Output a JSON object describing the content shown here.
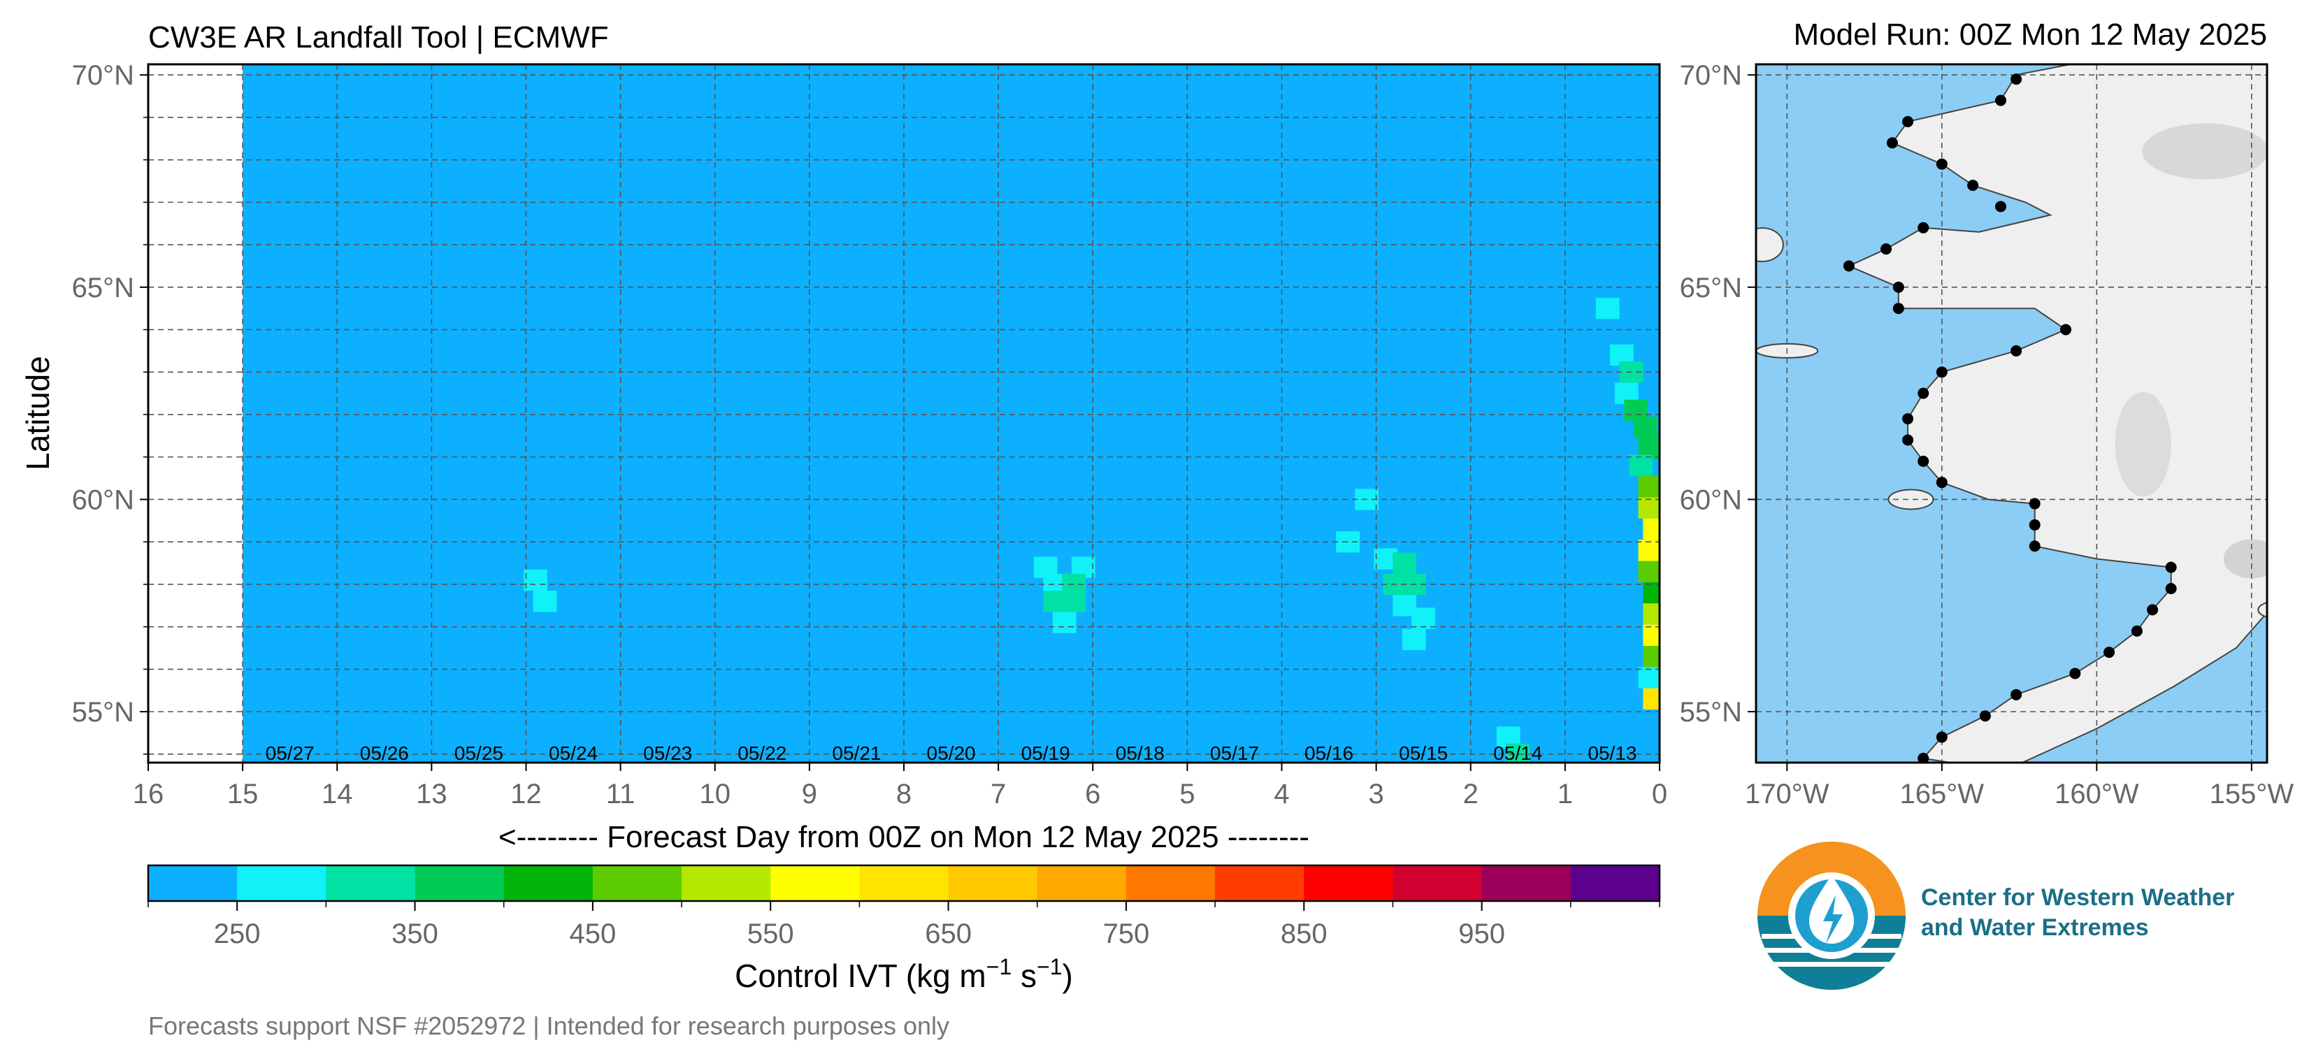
{
  "titles": {
    "left": "CW3E AR Landfall Tool | ECMWF",
    "right": "Model Run: 00Z Mon 12 May 2025"
  },
  "footer": "Forecasts support NSF #2052972 | Intended for research purposes only",
  "logo": {
    "line1": "Center for Western Weather",
    "line2": "and Water Extremes",
    "icon": "cw3e-drop-logo"
  },
  "colors": {
    "background": "#0cb0ff",
    "land": "#efefef",
    "ocean": "#8bcdf4",
    "missing": "#ffffff"
  },
  "chart_data": [
    {
      "type": "heatmap",
      "title": "CW3E AR Landfall Tool | ECMWF",
      "xlabel": "<-------- Forecast Day from 00Z on Mon 12 May 2025 --------",
      "ylabel": "Latitude",
      "x_ticks": [
        "16",
        "15",
        "14",
        "13",
        "12",
        "11",
        "10",
        "9",
        "8",
        "7",
        "6",
        "5",
        "4",
        "3",
        "2",
        "1",
        "0"
      ],
      "xlim": [
        16,
        0
      ],
      "y_ticks": [
        "55°N",
        "60°N",
        "65°N",
        "70°N"
      ],
      "ylim": [
        53.8,
        70.25
      ],
      "grid": true,
      "forecast_start_day": 15,
      "date_labels": [
        {
          "day": 14.5,
          "label": "05/27"
        },
        {
          "day": 13.5,
          "label": "05/26"
        },
        {
          "day": 12.5,
          "label": "05/25"
        },
        {
          "day": 11.5,
          "label": "05/24"
        },
        {
          "day": 10.5,
          "label": "05/23"
        },
        {
          "day": 9.5,
          "label": "05/22"
        },
        {
          "day": 8.5,
          "label": "05/21"
        },
        {
          "day": 7.5,
          "label": "05/20"
        },
        {
          "day": 6.5,
          "label": "05/19"
        },
        {
          "day": 5.5,
          "label": "05/18"
        },
        {
          "day": 4.5,
          "label": "05/17"
        },
        {
          "day": 3.5,
          "label": "05/16"
        },
        {
          "day": 2.5,
          "label": "05/15"
        },
        {
          "day": 1.5,
          "label": "05/14"
        },
        {
          "day": 0.5,
          "label": "05/13"
        }
      ],
      "ivt_cells": [
        {
          "day": 11.9,
          "lat": 58.1,
          "value": 270
        },
        {
          "day": 11.8,
          "lat": 57.6,
          "value": 270
        },
        {
          "day": 6.5,
          "lat": 58.4,
          "value": 270
        },
        {
          "day": 6.1,
          "lat": 58.4,
          "value": 270
        },
        {
          "day": 6.4,
          "lat": 58.0,
          "value": 270
        },
        {
          "day": 6.4,
          "lat": 57.6,
          "value": 320
        },
        {
          "day": 6.2,
          "lat": 58.0,
          "value": 330
        },
        {
          "day": 6.2,
          "lat": 57.6,
          "value": 320
        },
        {
          "day": 6.3,
          "lat": 57.1,
          "value": 270
        },
        {
          "day": 3.1,
          "lat": 60.0,
          "value": 270
        },
        {
          "day": 3.3,
          "lat": 59.0,
          "value": 270
        },
        {
          "day": 2.9,
          "lat": 58.6,
          "value": 270
        },
        {
          "day": 2.7,
          "lat": 58.5,
          "value": 310
        },
        {
          "day": 2.8,
          "lat": 58.0,
          "value": 320
        },
        {
          "day": 2.6,
          "lat": 58.0,
          "value": 320
        },
        {
          "day": 2.7,
          "lat": 57.5,
          "value": 290
        },
        {
          "day": 2.5,
          "lat": 57.2,
          "value": 270
        },
        {
          "day": 2.6,
          "lat": 56.7,
          "value": 270
        },
        {
          "day": 1.6,
          "lat": 54.4,
          "value": 270
        },
        {
          "day": 1.5,
          "lat": 54.0,
          "value": 330
        },
        {
          "day": 0.55,
          "lat": 64.5,
          "value": 270
        },
        {
          "day": 0.4,
          "lat": 63.4,
          "value": 270
        },
        {
          "day": 0.3,
          "lat": 63.0,
          "value": 330
        },
        {
          "day": 0.35,
          "lat": 62.5,
          "value": 270
        },
        {
          "day": 0.25,
          "lat": 62.1,
          "value": 390
        },
        {
          "day": 0.15,
          "lat": 61.7,
          "value": 390
        },
        {
          "day": 0.1,
          "lat": 61.2,
          "value": 390
        },
        {
          "day": 0.2,
          "lat": 60.8,
          "value": 330
        },
        {
          "day": 0.1,
          "lat": 60.3,
          "value": 470
        },
        {
          "day": 0.1,
          "lat": 59.8,
          "value": 520
        },
        {
          "day": 0.05,
          "lat": 59.3,
          "value": 560
        },
        {
          "day": 0.1,
          "lat": 58.8,
          "value": 560
        },
        {
          "day": 0.1,
          "lat": 58.3,
          "value": 470
        },
        {
          "day": 0.05,
          "lat": 57.8,
          "value": 430
        },
        {
          "day": 0.05,
          "lat": 57.3,
          "value": 540
        },
        {
          "day": 0.05,
          "lat": 56.8,
          "value": 560
        },
        {
          "day": 0.05,
          "lat": 56.3,
          "value": 480
        },
        {
          "day": 0.1,
          "lat": 55.8,
          "value": 270
        },
        {
          "day": 0.05,
          "lat": 55.3,
          "value": 640
        }
      ]
    },
    {
      "type": "map",
      "title": "Model Run: 00Z Mon 12 May 2025",
      "x_ticks": [
        "170°W",
        "165°W",
        "160°W",
        "155°W"
      ],
      "xlim": [
        -171.0,
        -154.5
      ],
      "y_ticks": [
        "55°N",
        "60°N",
        "65°N",
        "70°N"
      ],
      "ylim": [
        53.8,
        70.25
      ],
      "grid": true,
      "landfall_points": [
        [
          -162.6,
          69.9
        ],
        [
          -163.1,
          69.4
        ],
        [
          -166.1,
          68.9
        ],
        [
          -166.6,
          68.4
        ],
        [
          -165.0,
          67.9
        ],
        [
          -164.0,
          67.4
        ],
        [
          -163.1,
          66.9
        ],
        [
          -165.6,
          66.4
        ],
        [
          -166.8,
          65.9
        ],
        [
          -168.0,
          65.5
        ],
        [
          -166.4,
          65.0
        ],
        [
          -166.4,
          64.5
        ],
        [
          -161.0,
          64.0
        ],
        [
          -162.6,
          63.5
        ],
        [
          -165.0,
          63.0
        ],
        [
          -165.6,
          62.5
        ],
        [
          -166.1,
          61.9
        ],
        [
          -166.1,
          61.4
        ],
        [
          -165.6,
          60.9
        ],
        [
          -165.0,
          60.4
        ],
        [
          -162.0,
          59.9
        ],
        [
          -162.0,
          59.4
        ],
        [
          -162.0,
          58.9
        ],
        [
          -157.6,
          58.4
        ],
        [
          -157.6,
          57.9
        ],
        [
          -158.2,
          57.4
        ],
        [
          -158.7,
          56.9
        ],
        [
          -159.6,
          56.4
        ],
        [
          -160.7,
          55.9
        ],
        [
          -162.6,
          55.4
        ],
        [
          -163.6,
          54.9
        ],
        [
          -165.0,
          54.4
        ],
        [
          -165.6,
          53.9
        ]
      ]
    },
    {
      "type": "colorbar",
      "label_main": "Control IVT (kg m",
      "exp1": "−1",
      "label_mid": " s",
      "exp2": "−1",
      "label_end": ")",
      "boundaries": [
        200,
        250,
        300,
        350,
        400,
        450,
        500,
        550,
        600,
        650,
        700,
        750,
        800,
        850,
        900,
        950,
        1000,
        1050
      ],
      "tick_labels": [
        "250",
        "350",
        "450",
        "550",
        "650",
        "750",
        "850",
        "950"
      ],
      "colors": [
        "#0cb0ff",
        "#10f2f8",
        "#00e1a4",
        "#00cc55",
        "#00b40a",
        "#5ccc00",
        "#b4e800",
        "#ffff00",
        "#ffe400",
        "#ffc800",
        "#ffa800",
        "#ff7800",
        "#ff3c00",
        "#ff0000",
        "#d20030",
        "#9a005a",
        "#5c0090"
      ]
    }
  ]
}
